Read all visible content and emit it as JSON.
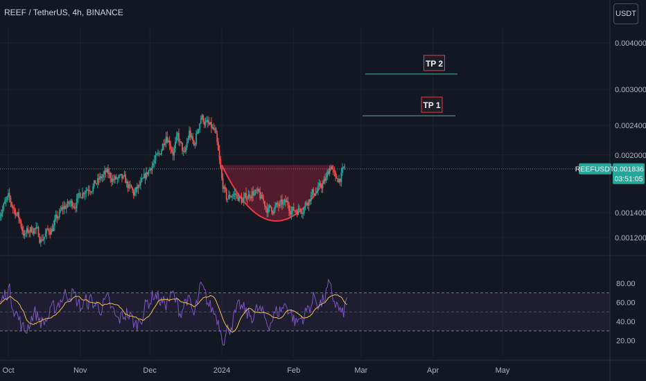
{
  "header": {
    "title": "REEF / TetherUS, 4h, BINANCE",
    "currency": "USDT"
  },
  "price_axis": {
    "ticks": [
      {
        "value": 0.004,
        "label": "0.004000"
      },
      {
        "value": 0.003,
        "label": "0.003000"
      },
      {
        "value": 0.0024,
        "label": "0.002400"
      },
      {
        "value": 0.002,
        "label": "0.002000"
      },
      {
        "value": 0.0014,
        "label": "0.001400"
      },
      {
        "value": 0.0012,
        "label": "0.001200"
      }
    ]
  },
  "rsi_axis": {
    "ticks": [
      80,
      60,
      40,
      20
    ],
    "labels": [
      "80.00",
      "60.00",
      "40.00",
      "20.00"
    ],
    "band": [
      30,
      70
    ],
    "mid": 50
  },
  "time_axis": [
    "Oct",
    "Nov",
    "Dec",
    "2024",
    "Feb",
    "Mar",
    "Apr",
    "May"
  ],
  "last_price": {
    "symbol": "REEFUSDT",
    "value": "0.001836",
    "countdown": "03:51:05"
  },
  "annotations": {
    "tp1": {
      "label": "TP 1",
      "price": 0.00255
    },
    "tp2": {
      "label": "TP 2",
      "price": 0.0033
    }
  },
  "colors": {
    "up": "#26a69a",
    "down": "#ef5350",
    "rsi": "#7e57c2",
    "rsi_ma": "#f5c542",
    "pattern": "#f23645",
    "target": "#4db6ac"
  },
  "chart_data": {
    "type": "candlestick",
    "scale": "log",
    "x_months": [
      "Oct",
      "Nov",
      "Dec",
      "2024",
      "Feb",
      "Mar",
      "Apr",
      "May"
    ],
    "price_path": [
      {
        "t": "Sep 27",
        "close": 0.0014
      },
      {
        "t": "Oct 1",
        "close": 0.00152
      },
      {
        "t": "Oct 5",
        "close": 0.00138
      },
      {
        "t": "Oct 8",
        "close": 0.00122
      },
      {
        "t": "Oct 12",
        "close": 0.00128
      },
      {
        "t": "Oct 15",
        "close": 0.00119
      },
      {
        "t": "Oct 20",
        "close": 0.00128
      },
      {
        "t": "Oct 25",
        "close": 0.00145
      },
      {
        "t": "Oct 30",
        "close": 0.0015
      },
      {
        "t": "Nov 3",
        "close": 0.00163
      },
      {
        "t": "Nov 8",
        "close": 0.00168
      },
      {
        "t": "Nov 12",
        "close": 0.00178
      },
      {
        "t": "Nov 16",
        "close": 0.00172
      },
      {
        "t": "Nov 20",
        "close": 0.0017
      },
      {
        "t": "Nov 24",
        "close": 0.00157
      },
      {
        "t": "Nov 28",
        "close": 0.00168
      },
      {
        "t": "Dec 2",
        "close": 0.0019
      },
      {
        "t": "Dec 5",
        "close": 0.00198
      },
      {
        "t": "Dec 8",
        "close": 0.0023
      },
      {
        "t": "Dec 11",
        "close": 0.00205
      },
      {
        "t": "Dec 13",
        "close": 0.00222
      },
      {
        "t": "Dec 16",
        "close": 0.00198
      },
      {
        "t": "Dec 18",
        "close": 0.0023
      },
      {
        "t": "Dec 20",
        "close": 0.0021
      },
      {
        "t": "Dec 23",
        "close": 0.00255
      },
      {
        "t": "Dec 26",
        "close": 0.0024
      },
      {
        "t": "Dec 29",
        "close": 0.0023
      },
      {
        "t": "Dec 31",
        "close": 0.0019
      },
      {
        "t": "Jan 1",
        "close": 0.0017
      },
      {
        "t": "Jan 3",
        "close": 0.00152
      },
      {
        "t": "Jan 6",
        "close": 0.00158
      },
      {
        "t": "Jan 10",
        "close": 0.0015
      },
      {
        "t": "Jan 14",
        "close": 0.0016
      },
      {
        "t": "Jan 17",
        "close": 0.00155
      },
      {
        "t": "Jan 21",
        "close": 0.00143
      },
      {
        "t": "Jan 25",
        "close": 0.00145
      },
      {
        "t": "Jan 29",
        "close": 0.00148
      },
      {
        "t": "Feb 1",
        "close": 0.00142
      },
      {
        "t": "Feb 5",
        "close": 0.00145
      },
      {
        "t": "Feb 9",
        "close": 0.00158
      },
      {
        "t": "Feb 12",
        "close": 0.00162
      },
      {
        "t": "Feb 15",
        "close": 0.00172
      },
      {
        "t": "Feb 17",
        "close": 0.0019
      },
      {
        "t": "Feb 19",
        "close": 0.0017
      },
      {
        "t": "Feb 21",
        "close": 0.00175
      },
      {
        "t": "Feb 23",
        "close": 0.00184
      }
    ],
    "rounding_bottom": {
      "start": {
        "t": "Jan 1",
        "price": 0.00188
      },
      "bottom": {
        "t": "Jan 24",
        "price": 0.00133
      },
      "end": {
        "t": "Feb 18",
        "price": 0.00188
      }
    },
    "rsi_path": [
      {
        "t": "Sep 27",
        "v": 55
      },
      {
        "t": "Oct 1",
        "v": 75
      },
      {
        "t": "Oct 5",
        "v": 45
      },
      {
        "t": "Oct 8",
        "v": 28
      },
      {
        "t": "Oct 12",
        "v": 50
      },
      {
        "t": "Oct 16",
        "v": 38
      },
      {
        "t": "Oct 20",
        "v": 50
      },
      {
        "t": "Oct 24",
        "v": 65
      },
      {
        "t": "Oct 28",
        "v": 72
      },
      {
        "t": "Nov 1",
        "v": 55
      },
      {
        "t": "Nov 5",
        "v": 62
      },
      {
        "t": "Nov 9",
        "v": 55
      },
      {
        "t": "Nov 13",
        "v": 60
      },
      {
        "t": "Nov 17",
        "v": 40
      },
      {
        "t": "Nov 21",
        "v": 50
      },
      {
        "t": "Nov 25",
        "v": 35
      },
      {
        "t": "Nov 29",
        "v": 55
      },
      {
        "t": "Dec 3",
        "v": 70
      },
      {
        "t": "Dec 7",
        "v": 58
      },
      {
        "t": "Dec 11",
        "v": 67
      },
      {
        "t": "Dec 14",
        "v": 50
      },
      {
        "t": "Dec 17",
        "v": 65
      },
      {
        "t": "Dec 20",
        "v": 45
      },
      {
        "t": "Dec 23",
        "v": 75
      },
      {
        "t": "Dec 27",
        "v": 55
      },
      {
        "t": "Dec 30",
        "v": 45
      },
      {
        "t": "Jan 2",
        "v": 22
      },
      {
        "t": "Jan 5",
        "v": 38
      },
      {
        "t": "Jan 9",
        "v": 55
      },
      {
        "t": "Jan 13",
        "v": 45
      },
      {
        "t": "Jan 17",
        "v": 52
      },
      {
        "t": "Jan 21",
        "v": 38
      },
      {
        "t": "Jan 25",
        "v": 50
      },
      {
        "t": "Jan 29",
        "v": 58
      },
      {
        "t": "Feb 2",
        "v": 38
      },
      {
        "t": "Feb 6",
        "v": 48
      },
      {
        "t": "Feb 10",
        "v": 65
      },
      {
        "t": "Feb 13",
        "v": 58
      },
      {
        "t": "Feb 16",
        "v": 75
      },
      {
        "t": "Feb 19",
        "v": 60
      },
      {
        "t": "Feb 22",
        "v": 45
      },
      {
        "t": "Feb 24",
        "v": 62
      }
    ],
    "xlabel": "",
    "ylabel": ""
  }
}
